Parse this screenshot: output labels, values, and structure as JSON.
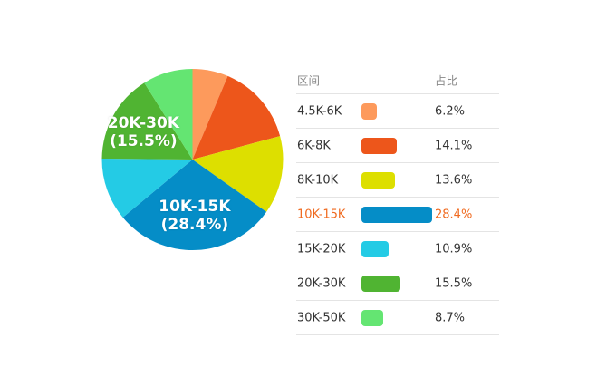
{
  "chart_data": {
    "type": "pie",
    "headers": {
      "range": "区间",
      "share": "占比"
    },
    "slices": [
      {
        "label": "4.5K-6K",
        "value": 6.2,
        "display": "6.2%",
        "color": "#fd9a5c"
      },
      {
        "label": "6K-8K",
        "value": 14.1,
        "display": "14.1%",
        "color": "#ed561b"
      },
      {
        "label": "8K-10K",
        "value": 13.6,
        "display": "13.6%",
        "color": "#dddf00"
      },
      {
        "label": "10K-15K",
        "value": 28.4,
        "display": "28.4%",
        "color": "#058dc7",
        "highlighted": true,
        "slice_label": "10K-15K\n(28.4%)"
      },
      {
        "label": "15K-20K",
        "value": 10.9,
        "display": "10.9%",
        "color": "#24cbe5"
      },
      {
        "label": "20K-30K",
        "value": 15.5,
        "display": "15.5%",
        "color": "#50b432",
        "slice_label": "20K-30K\n(15.5%)"
      },
      {
        "label": "30K-50K",
        "value": 8.7,
        "display": "8.7%",
        "color": "#64e572"
      }
    ],
    "highlight_text_color": "#f06a1f"
  }
}
